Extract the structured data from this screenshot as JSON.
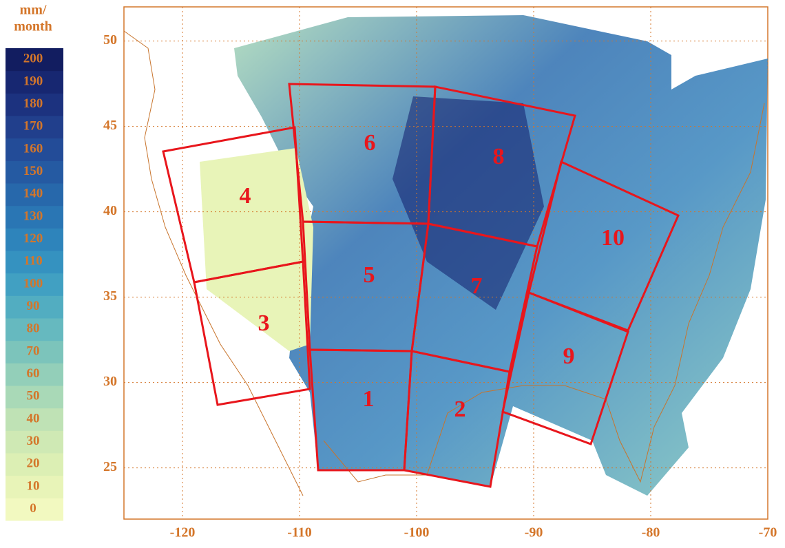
{
  "colorbar": {
    "unit": [
      "mm/",
      "month"
    ],
    "levels": [
      0,
      10,
      20,
      30,
      40,
      50,
      60,
      70,
      80,
      90,
      100,
      110,
      120,
      130,
      140,
      150,
      160,
      170,
      180,
      190,
      200
    ],
    "colors": [
      "#f2f9c0",
      "#e8f4b8",
      "#dcefb4",
      "#cfe9b4",
      "#bfe2b5",
      "#a9d9b7",
      "#93cfb9",
      "#7cc4bb",
      "#66b9bf",
      "#52adc1",
      "#41a0c2",
      "#3592c0",
      "#2e84bb",
      "#2a76b4",
      "#2768ab",
      "#255aa2",
      "#234c98",
      "#213f8c",
      "#1c327f",
      "#172771",
      "#121d60"
    ]
  },
  "map": {
    "xlim": [
      -125,
      -70
    ],
    "ylim": [
      22,
      52
    ],
    "xticks": [
      -120,
      -110,
      -100,
      -90,
      -80,
      -70
    ],
    "yticks": [
      25,
      30,
      35,
      40,
      45,
      50
    ],
    "grid": true,
    "regions": [
      "1",
      "2",
      "3",
      "4",
      "5",
      "6",
      "7",
      "8",
      "9",
      "10"
    ]
  }
}
